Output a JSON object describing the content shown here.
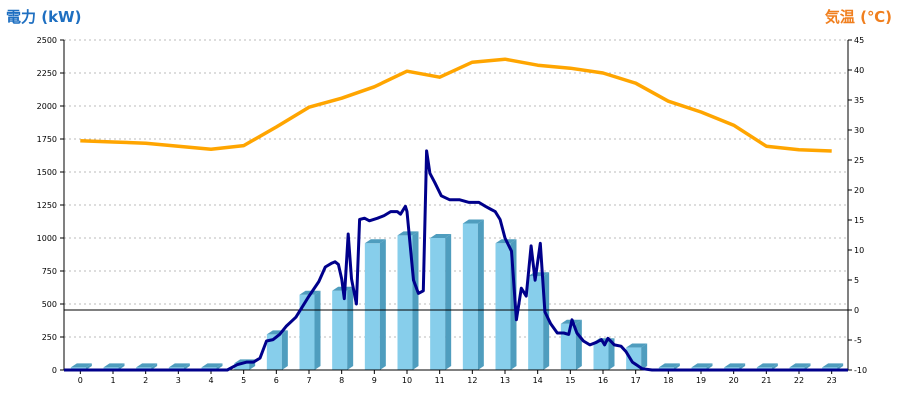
{
  "colors": {
    "left_axis_title": "#1e6fc1",
    "right_axis_title": "#f07f1e",
    "bar_front": "#87ceeb",
    "bar_side": "#4f9dbe",
    "bar_top": "#4f9dbe",
    "power_line": "#00008b",
    "temperature_line": "#ffa500",
    "grid": "#bbbbbb",
    "zero_line": "#000000"
  },
  "chart_data": {
    "type": "bar",
    "ylabel": "電力 (kW)",
    "y2label": "気温 (℃)",
    "categories": [
      "0",
      "1",
      "2",
      "3",
      "4",
      "5",
      "6",
      "7",
      "8",
      "9",
      "10",
      "11",
      "12",
      "13",
      "14",
      "15",
      "16",
      "17",
      "18",
      "19",
      "20",
      "21",
      "22",
      "23"
    ],
    "ylim": [
      0,
      2500
    ],
    "y2lim": [
      -10,
      45
    ],
    "yticks": [
      "0",
      "250",
      "500",
      "750",
      "1000",
      "1250",
      "1500",
      "1750",
      "2000",
      "2250",
      "2500"
    ],
    "y2ticks": [
      "-10",
      "-5",
      "0",
      "5",
      "10",
      "15",
      "20",
      "25",
      "30",
      "35",
      "40",
      "45"
    ],
    "horizontal_line_y2": 0,
    "grid": true,
    "series": [
      {
        "kind": "bar",
        "axis": "left",
        "values": [
          20,
          20,
          20,
          20,
          20,
          50,
          270,
          570,
          600,
          960,
          1020,
          1000,
          1110,
          960,
          710,
          350,
          210,
          170,
          20,
          20,
          20,
          20,
          20,
          20
        ]
      },
      {
        "kind": "line",
        "axis": "left",
        "points": [
          [
            -0.5,
            0
          ],
          [
            4.5,
            0
          ],
          [
            4.8,
            40
          ],
          [
            5.1,
            60
          ],
          [
            5.3,
            60
          ],
          [
            5.5,
            90
          ],
          [
            5.7,
            220
          ],
          [
            5.9,
            230
          ],
          [
            6.1,
            270
          ],
          [
            6.3,
            330
          ],
          [
            6.6,
            400
          ],
          [
            7.0,
            560
          ],
          [
            7.3,
            670
          ],
          [
            7.5,
            780
          ],
          [
            7.7,
            810
          ],
          [
            7.8,
            820
          ],
          [
            7.9,
            800
          ],
          [
            8.0,
            690
          ],
          [
            8.08,
            540
          ],
          [
            8.2,
            1030
          ],
          [
            8.3,
            690
          ],
          [
            8.45,
            500
          ],
          [
            8.55,
            1140
          ],
          [
            8.7,
            1150
          ],
          [
            8.85,
            1130
          ],
          [
            9.1,
            1150
          ],
          [
            9.3,
            1170
          ],
          [
            9.5,
            1200
          ],
          [
            9.7,
            1200
          ],
          [
            9.8,
            1180
          ],
          [
            9.9,
            1220
          ],
          [
            9.95,
            1240
          ],
          [
            10.0,
            1200
          ],
          [
            10.2,
            680
          ],
          [
            10.35,
            580
          ],
          [
            10.5,
            600
          ],
          [
            10.6,
            1660
          ],
          [
            10.7,
            1490
          ],
          [
            10.85,
            1420
          ],
          [
            11.05,
            1320
          ],
          [
            11.3,
            1290
          ],
          [
            11.6,
            1290
          ],
          [
            11.9,
            1270
          ],
          [
            12.2,
            1270
          ],
          [
            12.4,
            1240
          ],
          [
            12.55,
            1220
          ],
          [
            12.7,
            1200
          ],
          [
            12.85,
            1140
          ],
          [
            13.0,
            1000
          ],
          [
            13.2,
            900
          ],
          [
            13.35,
            380
          ],
          [
            13.5,
            620
          ],
          [
            13.65,
            560
          ],
          [
            13.8,
            940
          ],
          [
            13.92,
            680
          ],
          [
            14.08,
            960
          ],
          [
            14.22,
            440
          ],
          [
            14.4,
            350
          ],
          [
            14.6,
            280
          ],
          [
            14.8,
            280
          ],
          [
            14.95,
            270
          ],
          [
            15.05,
            380
          ],
          [
            15.2,
            280
          ],
          [
            15.4,
            220
          ],
          [
            15.6,
            190
          ],
          [
            15.8,
            210
          ],
          [
            15.95,
            230
          ],
          [
            16.05,
            190
          ],
          [
            16.15,
            240
          ],
          [
            16.35,
            190
          ],
          [
            16.55,
            180
          ],
          [
            16.7,
            140
          ],
          [
            16.9,
            60
          ],
          [
            17.2,
            10
          ],
          [
            17.5,
            0
          ],
          [
            23.5,
            0
          ]
        ]
      },
      {
        "kind": "line",
        "axis": "right",
        "values": [
          28.2,
          28.0,
          27.8,
          27.3,
          26.8,
          27.4,
          30.5,
          33.8,
          35.3,
          37.2,
          39.8,
          38.8,
          41.3,
          41.8,
          40.8,
          40.3,
          39.5,
          37.8,
          34.8,
          33.0,
          30.8,
          27.3,
          26.7,
          26.5
        ]
      }
    ]
  }
}
